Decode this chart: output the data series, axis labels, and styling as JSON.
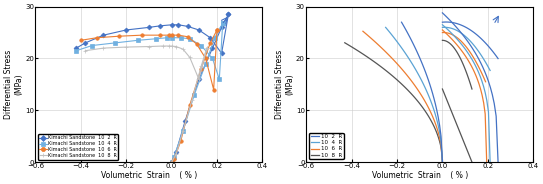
{
  "title_left": "",
  "title_right": "",
  "ylabel": "Differential Stress",
  "ylabel2": "(MPa)",
  "xlabel": "Volumetric  Strain",
  "xlabel2": "( % )",
  "xlim": [
    -0.6,
    0.4
  ],
  "ylim": [
    0.0,
    30.0
  ],
  "yticks": [
    0.0,
    10.0,
    20.0,
    30.0
  ],
  "xticks": [
    -0.6,
    -0.4,
    -0.2,
    0.0,
    0.2,
    0.4
  ],
  "colors": {
    "2R": "#4472C4",
    "4R": "#70B0E0",
    "6R": "#ED7D31",
    "8R": "#C0C0C0"
  },
  "legend_left": [
    "Kimachi Sandstone  10  2  R",
    "Kimachi Sandstone  10  4  R",
    "Kimachi Sandstone  10  6  R",
    "Kimachi Sandstone  10  8  R"
  ],
  "legend_right": [
    "10  2  R",
    "10  4  R",
    "10  6  R",
    "10  8  R"
  ]
}
